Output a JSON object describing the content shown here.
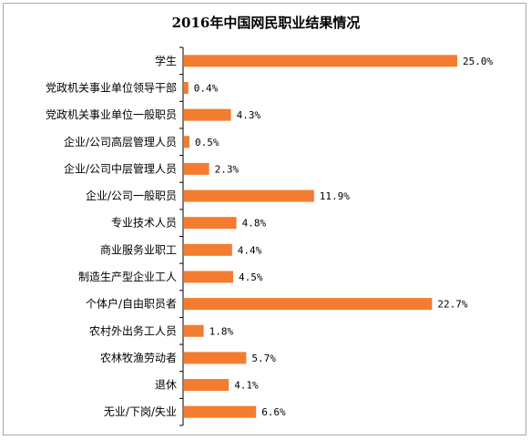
{
  "chart_data": {
    "type": "bar",
    "orientation": "horizontal",
    "title": "2016年中国网民职业结果情况",
    "xlabel": "",
    "ylabel": "",
    "xlim": [
      0,
      25
    ],
    "grid": false,
    "legend": "none",
    "bar_color": "#f47c30",
    "categories": [
      "学生",
      "党政机关事业单位领导干部",
      "党政机关事业单位一般职员",
      "企业/公司高层管理人员",
      "企业/公司中层管理人员",
      "企业/公司一般职员",
      "专业技术人员",
      "商业服务业职工",
      "制造生产型企业工人",
      "个体户/自由职员者",
      "农村外出务工人员",
      "农林牧渔劳动者",
      "退休",
      "无业/下岗/失业"
    ],
    "values": [
      25.0,
      0.4,
      4.3,
      0.5,
      2.3,
      11.9,
      4.8,
      4.4,
      4.5,
      22.7,
      1.8,
      5.7,
      4.1,
      6.6
    ],
    "value_labels": [
      "25.0%",
      "0.4%",
      "4.3%",
      "0.5%",
      "2.3%",
      "11.9%",
      "4.8%",
      "4.4%",
      "4.5%",
      "22.7%",
      "1.8%",
      "5.7%",
      "4.1%",
      "6.6%"
    ]
  }
}
